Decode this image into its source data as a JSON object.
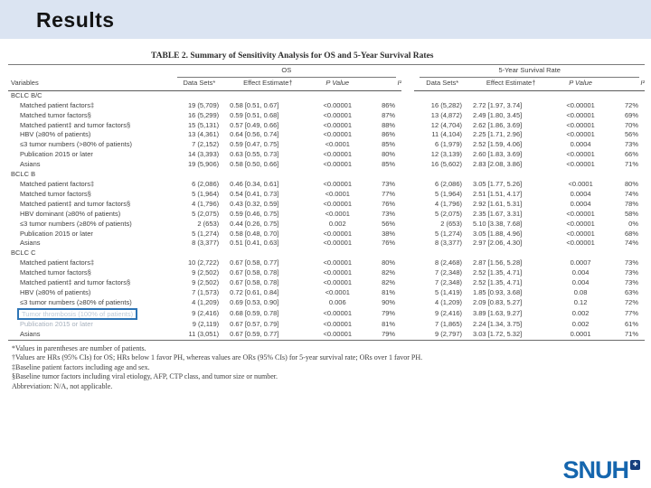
{
  "slide": {
    "title": "Results",
    "logo_text": "SNUH",
    "logo_icon": "square-emblem-icon",
    "colors": {
      "header_band": "#dbe4f2",
      "highlight_box": "#2e75b6",
      "logo_blue": "#1566ae"
    }
  },
  "table": {
    "title": "TABLE 2. Summary of Sensitivity Analysis for OS and 5-Year Survival Rates",
    "group_headers": [
      "OS",
      "5-Year Survival Rate"
    ],
    "col_headers": [
      "Variables",
      "Data Sets*",
      "Effect Estimate†",
      "P Value",
      "I²",
      "Data Sets*",
      "Effect Estimate†",
      "P Value",
      "I²"
    ],
    "sections": [
      {
        "name": "BCLC B/C",
        "rows": [
          {
            "label": "Matched patient factors‡",
            "os": [
              "19 (5,709)",
              "0.58 [0.51, 0.67]",
              "<0.00001",
              "86%"
            ],
            "sy": [
              "16 (5,282)",
              "2.72 [1.97, 3.74]",
              "<0.00001",
              "72%"
            ]
          },
          {
            "label": "Matched tumor factors§",
            "os": [
              "16 (5,299)",
              "0.59 [0.51, 0.68]",
              "<0.00001",
              "87%"
            ],
            "sy": [
              "13 (4,872)",
              "2.49 [1.80, 3.45]",
              "<0.00001",
              "69%"
            ]
          },
          {
            "label": "Matched patient‡ and tumor factors§",
            "os": [
              "15 (5,131)",
              "0.57 [0.49, 0.66]",
              "<0.00001",
              "88%"
            ],
            "sy": [
              "12 (4,704)",
              "2.62 [1.86, 3.69]",
              "<0.00001",
              "70%"
            ]
          },
          {
            "label": "HBV (≥80% of patients)",
            "os": [
              "13 (4,361)",
              "0.64 [0.56, 0.74]",
              "<0.00001",
              "86%"
            ],
            "sy": [
              "11 (4,104)",
              "2.25 [1.71, 2.96]",
              "<0.00001",
              "56%"
            ]
          },
          {
            "label": "≤3 tumor numbers (>80% of patients)",
            "os": [
              "7 (2,152)",
              "0.59 [0.47, 0.75]",
              "<0.0001",
              "85%"
            ],
            "sy": [
              "6 (1,979)",
              "2.52 [1.59, 4.06]",
              "0.0004",
              "73%"
            ]
          },
          {
            "label": "Publication 2015 or later",
            "os": [
              "14 (3,393)",
              "0.63 [0.55, 0.73]",
              "<0.00001",
              "80%"
            ],
            "sy": [
              "12 (3,139)",
              "2.60 [1.83, 3.69]",
              "<0.00001",
              "66%"
            ]
          },
          {
            "label": "Asians",
            "os": [
              "19 (5,906)",
              "0.58 [0.50, 0.66]",
              "<0.00001",
              "85%"
            ],
            "sy": [
              "16 (5,602)",
              "2.83 [2.08, 3.86]",
              "<0.00001",
              "71%"
            ]
          }
        ]
      },
      {
        "name": "BCLC B",
        "rows": [
          {
            "label": "Matched patient factors‡",
            "os": [
              "6 (2,086)",
              "0.46 [0.34, 0.61]",
              "<0.00001",
              "73%"
            ],
            "sy": [
              "6 (2,086)",
              "3.05 [1.77, 5.26]",
              "<0.0001",
              "80%"
            ]
          },
          {
            "label": "Matched tumor factors§",
            "os": [
              "5 (1,964)",
              "0.54 [0.41, 0.73]",
              "<0.0001",
              "77%"
            ],
            "sy": [
              "5 (1,964)",
              "2.51 [1.51, 4.17]",
              "0.0004",
              "74%"
            ]
          },
          {
            "label": "Matched patient‡ and tumor factors§",
            "os": [
              "4 (1,796)",
              "0.43 [0.32, 0.59]",
              "<0.00001",
              "76%"
            ],
            "sy": [
              "4 (1,796)",
              "2.92 [1.61, 5.31]",
              "0.0004",
              "78%"
            ]
          },
          {
            "label": "HBV dominant (≥80% of patients)",
            "os": [
              "5 (2,075)",
              "0.59 [0.46, 0.75]",
              "<0.0001",
              "73%"
            ],
            "sy": [
              "5 (2,075)",
              "2.35 [1.67, 3.31]",
              "<0.00001",
              "58%"
            ]
          },
          {
            "label": "≤3 tumor numbers (≥80% of patients)",
            "os": [
              "2 (653)",
              "0.44 [0.26, 0.75]",
              "0.002",
              "56%"
            ],
            "sy": [
              "2 (653)",
              "5.10 [3.38, 7.68]",
              "<0.00001",
              "0%"
            ]
          },
          {
            "label": "Publication 2015 or later",
            "os": [
              "5 (1,274)",
              "0.58 [0.48, 0.70]",
              "<0.00001",
              "38%"
            ],
            "sy": [
              "5 (1,274)",
              "3.05 [1.88, 4.96]",
              "<0.00001",
              "68%"
            ]
          },
          {
            "label": "Asians",
            "os": [
              "8 (3,377)",
              "0.51 [0.41, 0.63]",
              "<0.00001",
              "76%"
            ],
            "sy": [
              "8 (3,377)",
              "2.97 [2.06, 4.30]",
              "<0.00001",
              "74%"
            ]
          }
        ]
      },
      {
        "name": "BCLC C",
        "rows": [
          {
            "label": "Matched patient factors‡",
            "os": [
              "10 (2,722)",
              "0.67 [0.58, 0.77]",
              "<0.00001",
              "80%"
            ],
            "sy": [
              "8 (2,468)",
              "2.87 [1.56, 5.28]",
              "0.0007",
              "73%"
            ]
          },
          {
            "label": "Matched tumor factors§",
            "os": [
              "9 (2,502)",
              "0.67 [0.58, 0.78]",
              "<0.00001",
              "82%"
            ],
            "sy": [
              "7 (2,348)",
              "2.52 [1.35, 4.71]",
              "0.004",
              "73%"
            ]
          },
          {
            "label": "Matched patient‡ and tumor factors§",
            "os": [
              "9 (2,502)",
              "0.67 [0.58, 0.78]",
              "<0.00001",
              "82%"
            ],
            "sy": [
              "7 (2,348)",
              "2.52 [1.35, 4.71]",
              "0.004",
              "73%"
            ]
          },
          {
            "label": "HBV (≥80% of patients)",
            "os": [
              "7 (1,573)",
              "0.72 [0.61, 0.84]",
              "<0.0001",
              "81%"
            ],
            "sy": [
              "5 (1,419)",
              "1.85 [0.93, 3.68]",
              "0.08",
              "63%"
            ]
          },
          {
            "label": "≤3 tumor numbers (≥80% of patients)",
            "os": [
              "4 (1,209)",
              "0.69 [0.53, 0.90]",
              "0.006",
              "90%"
            ],
            "sy": [
              "4 (1,209)",
              "2.09 [0.83, 5.27]",
              "0.12",
              "72%"
            ]
          },
          {
            "label": "Tumor thrombosis (100% of patients)",
            "boxed": true,
            "os": [
              "9 (2,416)",
              "0.68 [0.59, 0.78]",
              "<0.00001",
              "79%"
            ],
            "sy": [
              "9 (2,416)",
              "3.89 [1.63, 9.27]",
              "0.002",
              "77%"
            ]
          },
          {
            "label": "Publication 2015 or later",
            "washed": true,
            "os": [
              "9 (2,119)",
              "0.67 [0.57, 0.79]",
              "<0.00001",
              "81%"
            ],
            "sy": [
              "7 (1,865)",
              "2.24 [1.34, 3.75]",
              "0.002",
              "61%"
            ]
          },
          {
            "label": "Asians",
            "os": [
              "11 (3,051)",
              "0.67 [0.59, 0.77]",
              "<0.00001",
              "79%"
            ],
            "sy": [
              "9 (2,797)",
              "3.03 [1.72, 5.32]",
              "0.0001",
              "71%"
            ]
          }
        ]
      }
    ],
    "footnotes": [
      "*Values in parentheses are number of patients.",
      "†Values are HRs (95% CIs) for OS; HRs below 1 favor PH, whereas values are ORs (95% CIs) for 5-year survival rate; ORs over 1 favor PH.",
      "‡Baseline patient factors including age and sex.",
      "§Baseline tumor factors including viral etiology, AFP, CTP class, and tumor size or number.",
      "Abbreviation: N/A, not applicable."
    ]
  }
}
